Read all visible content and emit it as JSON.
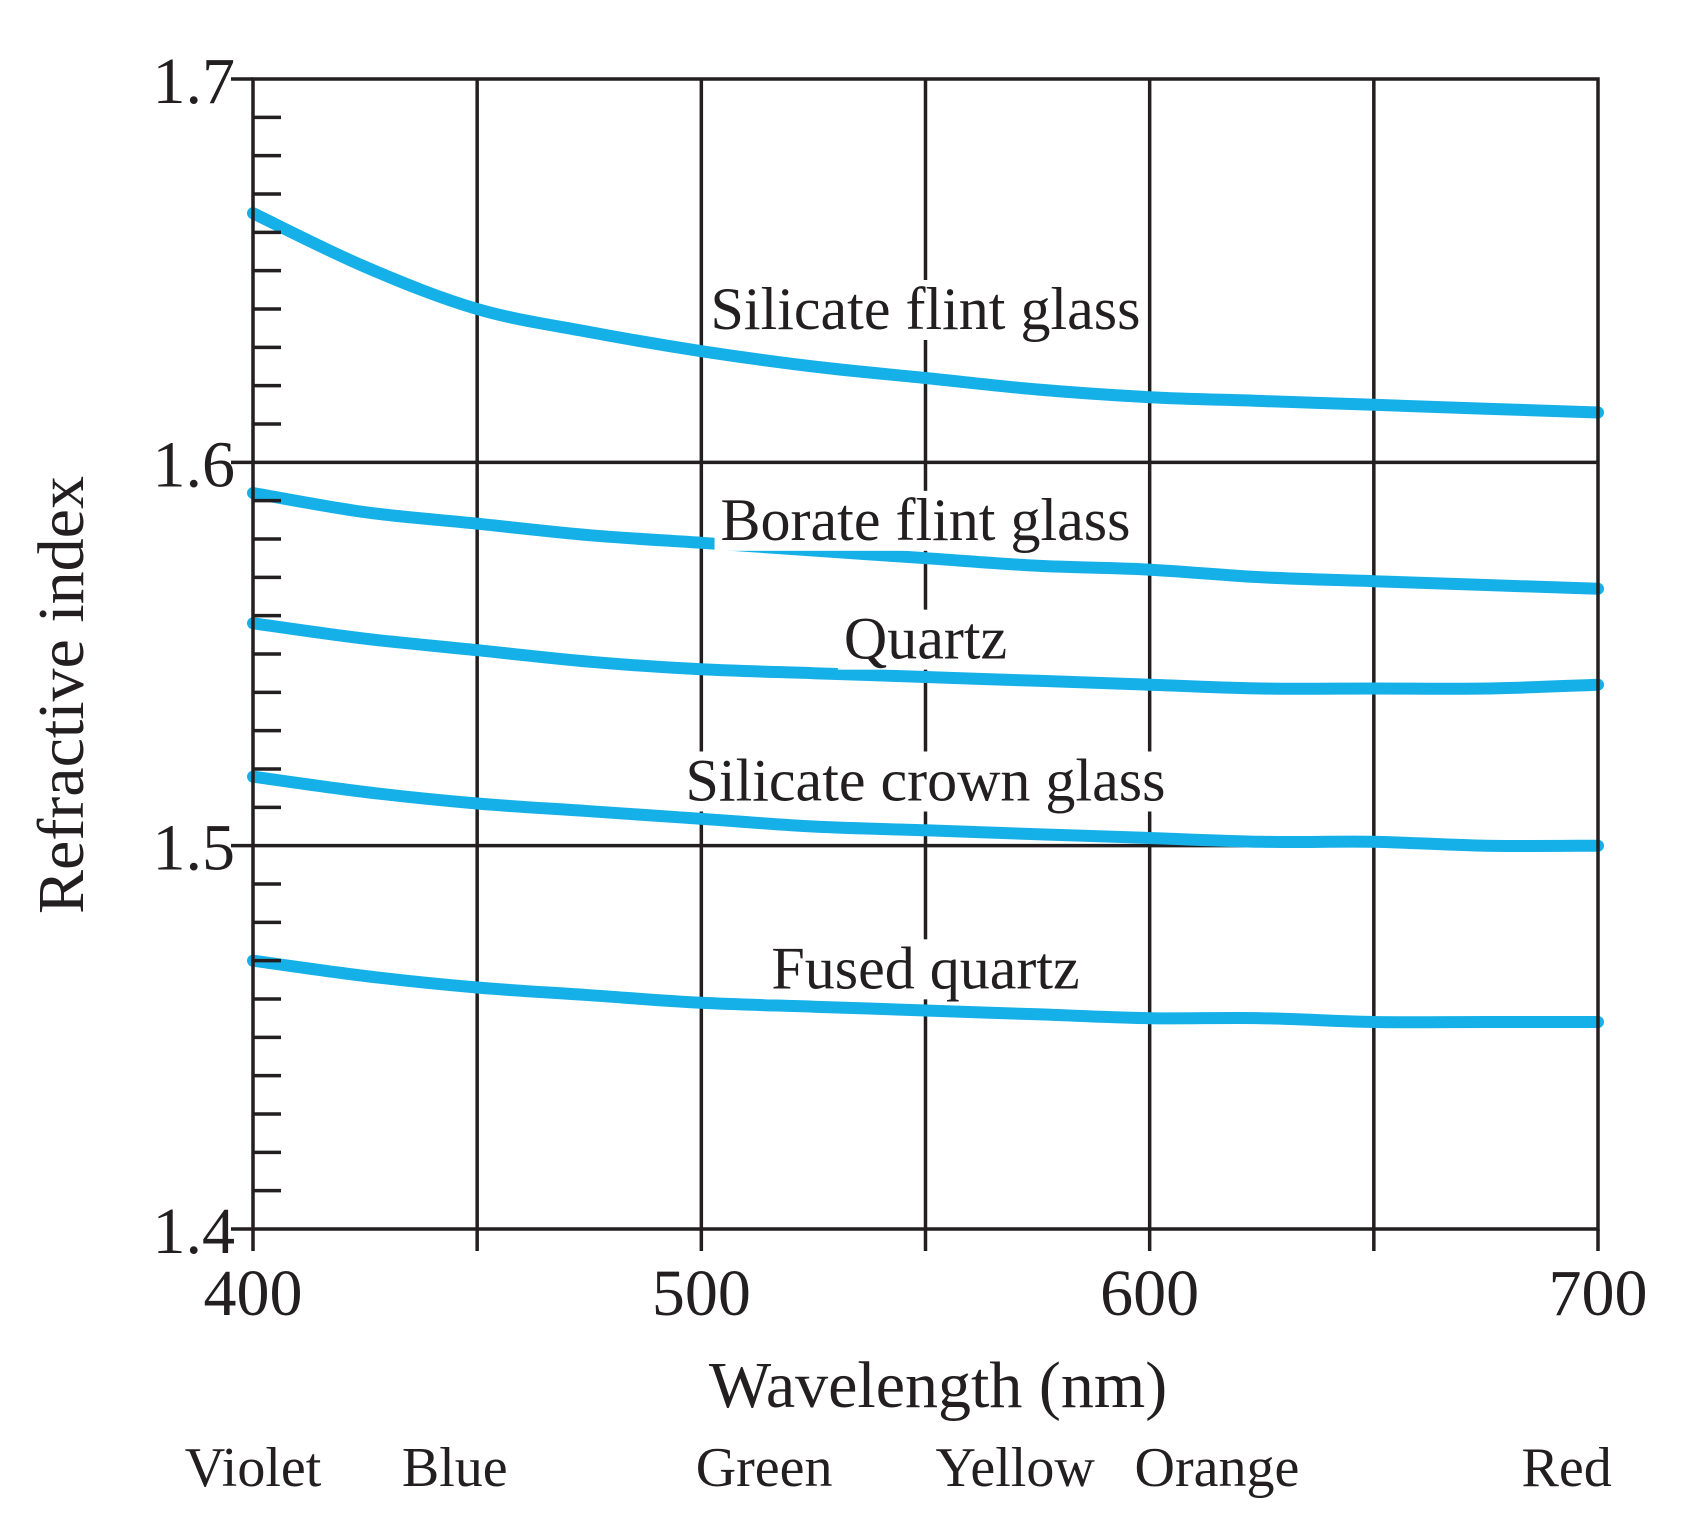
{
  "chart_data": {
    "type": "line",
    "xlabel": "Wavelength (nm)",
    "ylabel": "Refractive index",
    "xlim": [
      400,
      700
    ],
    "ylim": [
      1.4,
      1.7
    ],
    "x_ticks": [
      400,
      500,
      600,
      700
    ],
    "x_tick_labels": [
      "400",
      "500",
      "600",
      "700"
    ],
    "y_ticks": [
      1.4,
      1.5,
      1.6,
      1.7
    ],
    "y_tick_labels": [
      "1.4",
      "1.5",
      "1.6",
      "1.7"
    ],
    "grid": true,
    "line_color": "#15b0e7",
    "color_bands": [
      {
        "label": "Violet",
        "x": 400
      },
      {
        "label": "Blue",
        "x": 445
      },
      {
        "label": "Green",
        "x": 514
      },
      {
        "label": "Yellow",
        "x": 570
      },
      {
        "label": "Orange",
        "x": 615
      },
      {
        "label": "Red",
        "x": 693
      }
    ],
    "series": [
      {
        "name": "Silicate flint glass",
        "label_x": 550,
        "label_y": 1.64,
        "x": [
          400,
          425,
          450,
          475,
          500,
          525,
          550,
          575,
          600,
          625,
          650,
          675,
          700
        ],
        "values": [
          1.665,
          1.651,
          1.64,
          1.634,
          1.629,
          1.625,
          1.622,
          1.619,
          1.617,
          1.616,
          1.615,
          1.614,
          1.613
        ]
      },
      {
        "name": "Borate flint glass",
        "label_x": 550,
        "label_y": 1.585,
        "x": [
          400,
          425,
          450,
          475,
          500,
          525,
          550,
          575,
          600,
          625,
          650,
          675,
          700
        ],
        "values": [
          1.592,
          1.587,
          1.584,
          1.581,
          1.579,
          1.577,
          1.575,
          1.573,
          1.572,
          1.57,
          1.569,
          1.568,
          1.567
        ]
      },
      {
        "name": "Quartz",
        "label_x": 550,
        "label_y": 1.554,
        "x": [
          400,
          425,
          450,
          475,
          500,
          525,
          550,
          575,
          600,
          625,
          650,
          675,
          700
        ],
        "values": [
          1.558,
          1.554,
          1.551,
          1.548,
          1.546,
          1.545,
          1.544,
          1.543,
          1.542,
          1.541,
          1.541,
          1.541,
          1.542
        ]
      },
      {
        "name": "Silicate crown glass",
        "label_x": 550,
        "label_y": 1.517,
        "x": [
          400,
          425,
          450,
          475,
          500,
          525,
          550,
          575,
          600,
          625,
          650,
          675,
          700
        ],
        "values": [
          1.518,
          1.514,
          1.511,
          1.509,
          1.507,
          1.505,
          1.504,
          1.503,
          1.502,
          1.501,
          1.501,
          1.5,
          1.5
        ]
      },
      {
        "name": "Fused quartz",
        "label_x": 550,
        "label_y": 1.468,
        "x": [
          400,
          425,
          450,
          475,
          500,
          525,
          550,
          575,
          600,
          625,
          650,
          675,
          700
        ],
        "values": [
          1.47,
          1.466,
          1.463,
          1.461,
          1.459,
          1.458,
          1.457,
          1.456,
          1.455,
          1.455,
          1.454,
          1.454,
          1.454
        ]
      }
    ]
  }
}
